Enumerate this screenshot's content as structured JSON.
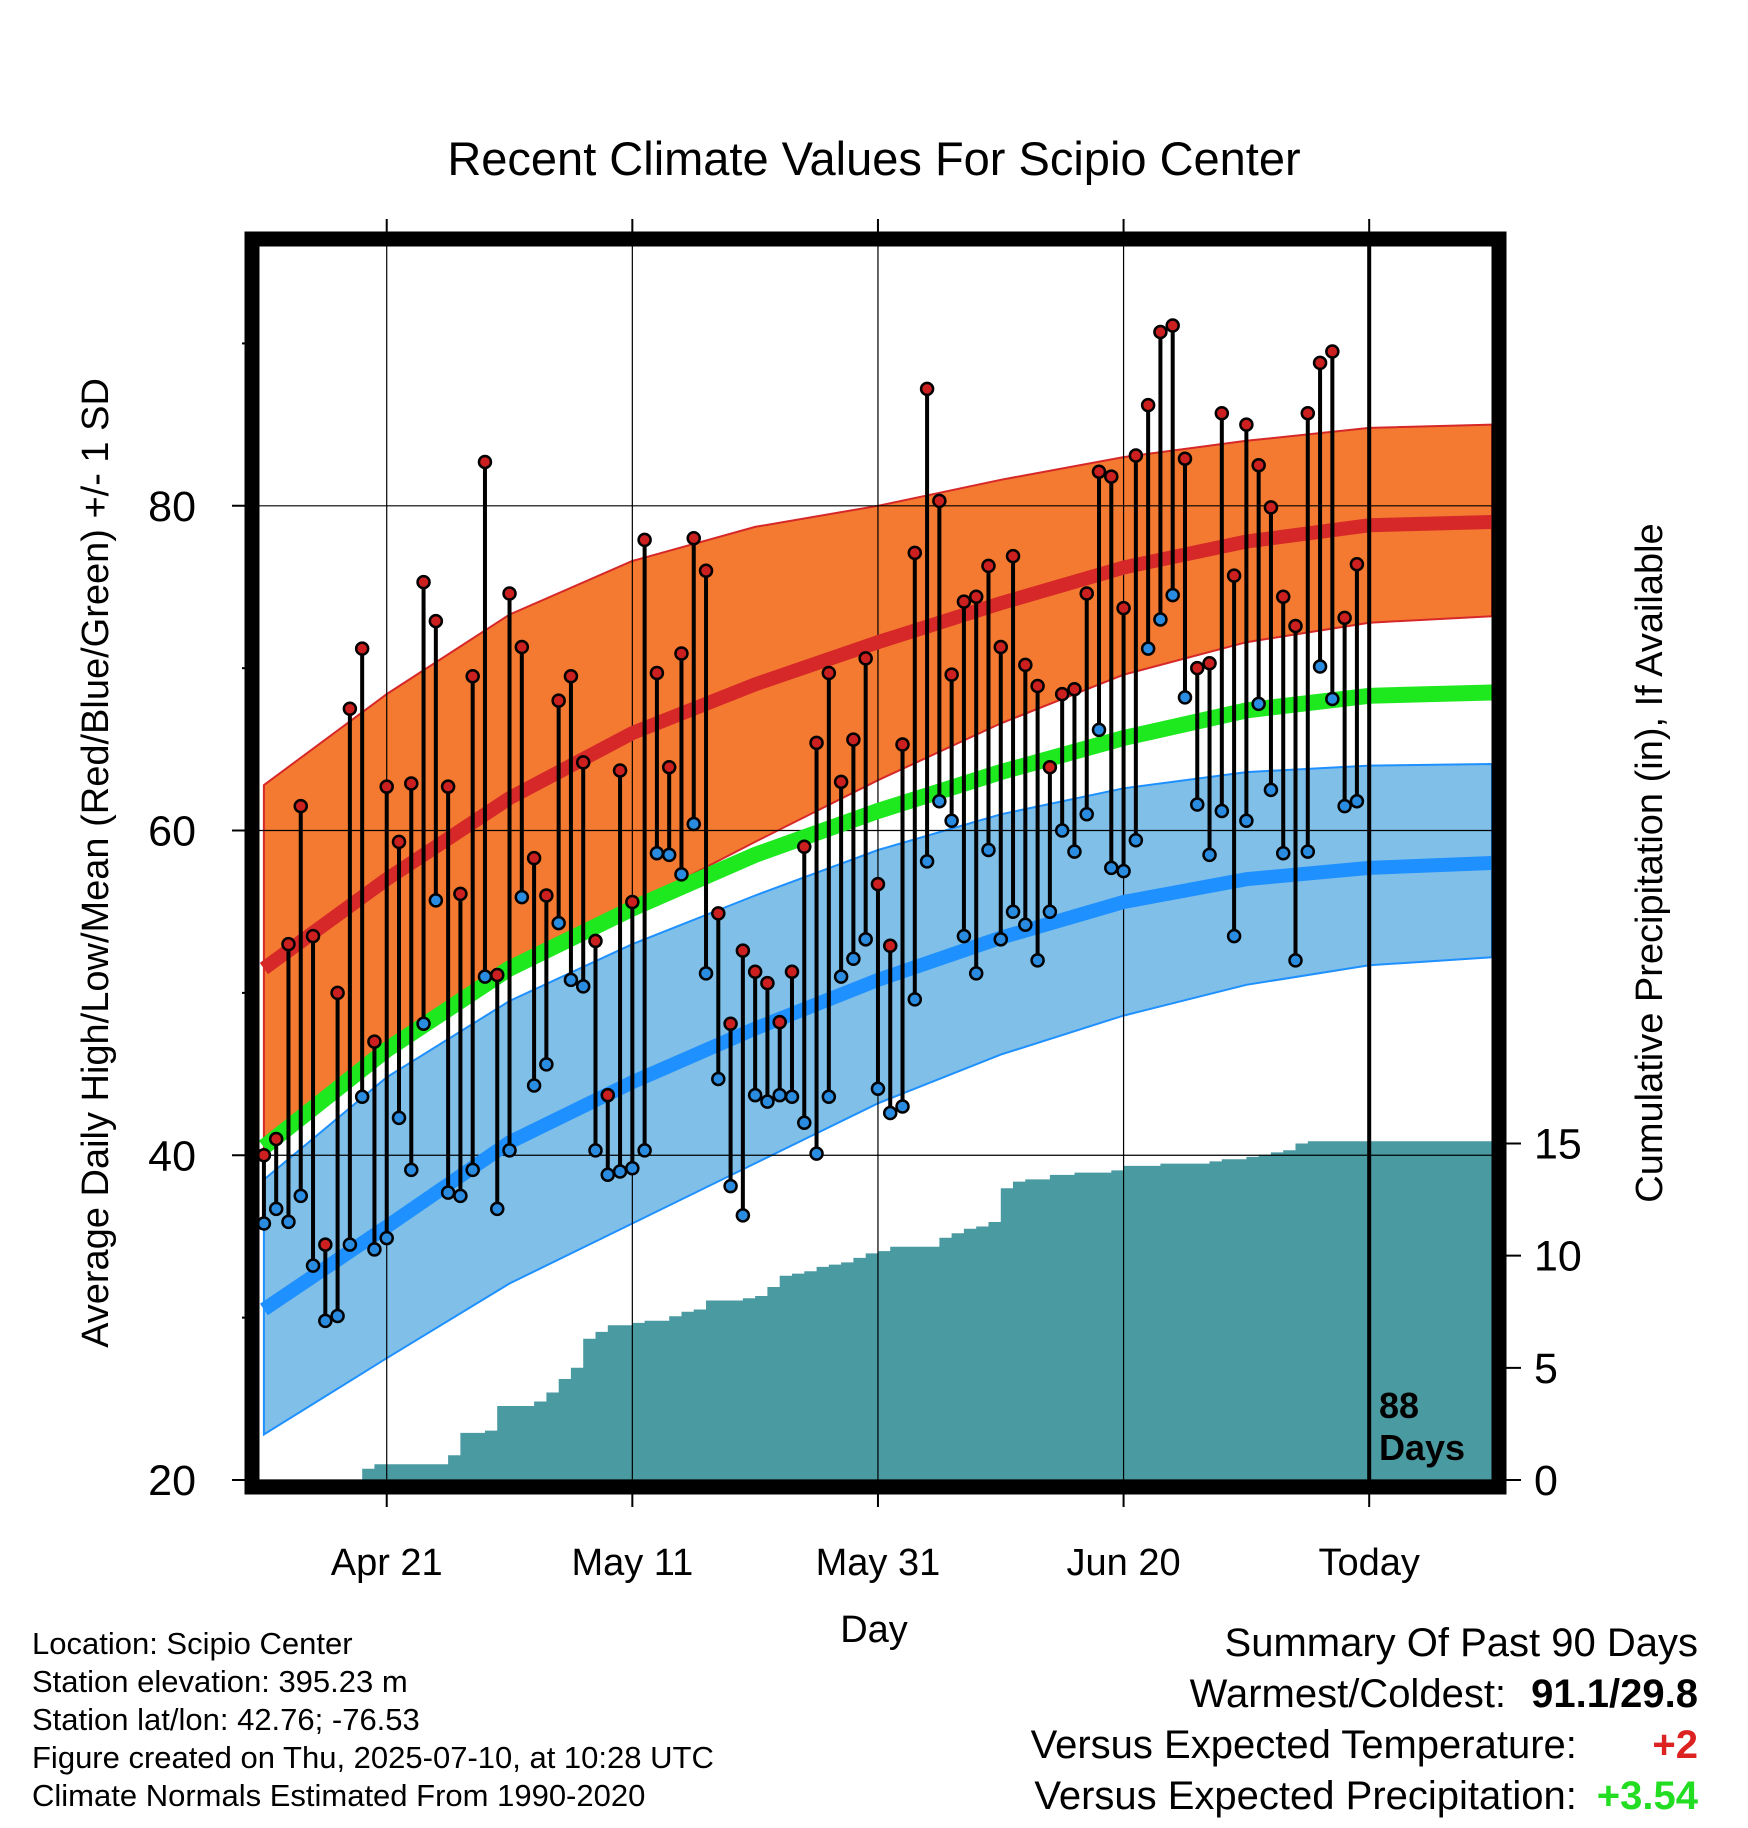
{
  "title": "Recent Climate Values For Scipio Center",
  "chart_data": {
    "type": "line",
    "title": "Recent Climate Values For Scipio Center",
    "xlabel": "Day",
    "ylabel": "Average Daily High/Low/Mean (Red/Blue/Green) +/- 1 SD",
    "y2label": "Cumulative Precipitation (in), If Available",
    "x_ticks": [
      {
        "day": 10,
        "label": "Apr 21"
      },
      {
        "day": 30,
        "label": "May 11"
      },
      {
        "day": 50,
        "label": "May 31"
      },
      {
        "day": 70,
        "label": "Jun 20"
      },
      {
        "day": 90,
        "label": "Today"
      }
    ],
    "xlim": [
      -0.4,
      100
    ],
    "ylim": [
      20,
      96
    ],
    "y_ticks": [
      20,
      40,
      60,
      80
    ],
    "y_minor_ticks": [
      30,
      50,
      70,
      90
    ],
    "y2lim": [
      0,
      55
    ],
    "y2_ticks": [
      0,
      5,
      10,
      15
    ],
    "today_marker": {
      "day": 90,
      "label_line1": "88",
      "label_line2": "Days"
    },
    "normals": {
      "days": [
        0,
        10,
        20,
        30,
        40,
        50,
        60,
        70,
        80,
        90,
        100
      ],
      "high_mean": [
        51.5,
        57.0,
        62.0,
        66.0,
        69.0,
        71.6,
        74.0,
        76.2,
        77.8,
        78.8,
        79.0
      ],
      "high_upper": [
        62.8,
        68.4,
        73.3,
        76.6,
        78.7,
        80.0,
        81.6,
        83.0,
        84.0,
        84.8,
        85.0
      ],
      "high_lower": [
        40.5,
        46.1,
        51.2,
        55.4,
        59.3,
        63.1,
        66.6,
        69.6,
        71.6,
        72.8,
        73.2
      ],
      "mean": [
        40.5,
        46.5,
        51.5,
        55.2,
        58.5,
        61.2,
        63.6,
        65.7,
        67.4,
        68.3,
        68.5
      ],
      "low_mean": [
        30.5,
        35.6,
        40.8,
        44.5,
        47.8,
        50.8,
        53.4,
        55.6,
        57.0,
        57.7,
        58.0
      ],
      "low_upper": [
        38.5,
        44.8,
        49.5,
        53.0,
        56.0,
        58.8,
        61.0,
        62.6,
        63.6,
        64.0,
        64.1
      ],
      "low_lower": [
        22.8,
        27.5,
        32.1,
        35.8,
        39.5,
        43.2,
        46.2,
        48.6,
        50.5,
        51.7,
        52.2
      ]
    },
    "series": [
      {
        "name": "High",
        "color": "#e02020",
        "values": [
          40.0,
          41.0,
          53.0,
          61.5,
          53.5,
          34.5,
          50.0,
          67.5,
          71.2,
          47.0,
          62.7,
          59.3,
          62.9,
          75.3,
          72.9,
          62.7,
          56.1,
          69.5,
          82.7,
          51.1,
          74.6,
          71.3,
          58.3,
          56.0,
          68.0,
          69.5,
          64.2,
          53.2,
          43.7,
          63.7,
          55.6,
          77.9,
          69.7,
          63.9,
          70.9,
          78.0,
          76.0,
          54.9,
          48.1,
          52.6,
          51.3,
          50.6,
          48.2,
          51.3,
          59.0,
          65.4,
          69.7,
          63.0,
          65.6,
          70.6,
          56.7,
          52.9,
          65.3,
          77.1,
          87.2,
          80.3,
          69.6,
          74.1,
          74.4,
          76.3,
          71.3,
          76.9,
          70.2,
          68.9,
          63.9,
          68.4,
          68.7,
          74.6,
          82.1,
          81.8,
          73.7,
          83.1,
          86.2,
          90.7,
          91.1,
          82.9,
          70.0,
          70.3,
          85.7,
          75.7,
          85.0,
          82.5,
          79.9,
          74.4,
          72.6,
          85.7,
          88.8,
          89.5,
          73.1,
          76.4
        ]
      },
      {
        "name": "Low",
        "color": "#1e90ff",
        "values": [
          35.8,
          36.7,
          35.9,
          37.5,
          33.2,
          29.8,
          30.1,
          34.5,
          43.6,
          34.2,
          34.9,
          42.3,
          39.1,
          48.1,
          55.7,
          37.7,
          37.5,
          39.1,
          51.0,
          36.7,
          40.3,
          55.9,
          44.3,
          45.6,
          54.3,
          50.8,
          50.4,
          40.3,
          38.8,
          39.0,
          39.2,
          40.3,
          58.6,
          58.5,
          57.3,
          60.4,
          51.2,
          44.7,
          38.1,
          36.3,
          43.7,
          43.3,
          43.7,
          43.6,
          42.0,
          40.1,
          43.6,
          51.0,
          52.1,
          53.3,
          44.1,
          42.6,
          43.0,
          49.6,
          58.1,
          61.8,
          60.6,
          53.5,
          51.2,
          58.8,
          53.3,
          55.0,
          54.2,
          52.0,
          55.0,
          60.0,
          58.7,
          61.0,
          66.2,
          57.7,
          57.5,
          59.4,
          71.2,
          73.0,
          74.5,
          68.2,
          61.6,
          58.5,
          61.2,
          53.5,
          60.6,
          67.8,
          62.5,
          58.6,
          52.0,
          58.7,
          70.1,
          68.1,
          61.5,
          61.8
        ]
      },
      {
        "name": "Cumulative Precipitation",
        "color": "#4a9aa2",
        "days": [
          0,
          7,
          8,
          9,
          14,
          15,
          16,
          18,
          19,
          21,
          22,
          23,
          24,
          25,
          26,
          27,
          28,
          29,
          30,
          31,
          32,
          33,
          34,
          35,
          36,
          37,
          38,
          39,
          40,
          41,
          42,
          43,
          44,
          45,
          46,
          47,
          48,
          49,
          50,
          51,
          52,
          53,
          54,
          55,
          56,
          57,
          58,
          59,
          60,
          61,
          62,
          63,
          64,
          65,
          66,
          67,
          68,
          69,
          70,
          71,
          72,
          73,
          74,
          75,
          76,
          77,
          78,
          79,
          80,
          81,
          82,
          83,
          84,
          85,
          86,
          87,
          88,
          89,
          90,
          100
        ],
        "values": [
          0,
          0,
          0.5,
          0.7,
          0.7,
          1.1,
          2.1,
          2.2,
          3.3,
          3.3,
          3.5,
          3.9,
          4.5,
          5.0,
          6.3,
          6.6,
          6.9,
          6.9,
          7.0,
          7.1,
          7.1,
          7.3,
          7.5,
          7.6,
          8.0,
          8.0,
          8.0,
          8.1,
          8.2,
          8.6,
          9.1,
          9.2,
          9.3,
          9.5,
          9.6,
          9.7,
          9.9,
          10.1,
          10.2,
          10.4,
          10.4,
          10.4,
          10.4,
          10.8,
          11.0,
          11.2,
          11.3,
          11.5,
          13.0,
          13.3,
          13.4,
          13.4,
          13.6,
          13.6,
          13.7,
          13.7,
          13.7,
          13.8,
          14.0,
          14.0,
          14.0,
          14.1,
          14.1,
          14.1,
          14.1,
          14.2,
          14.3,
          14.3,
          14.4,
          14.5,
          14.6,
          14.7,
          15.0,
          15.1,
          15.1,
          15.1,
          15.1,
          15.1,
          15.1,
          15.1
        ]
      }
    ]
  },
  "info": {
    "location": "Location: Scipio Center",
    "elevation": "Station elevation: 395.23 m",
    "latlon": "Station lat/lon: 42.76; -76.53",
    "created": "Figure created on Thu, 2025-07-10, at 10:28 UTC",
    "normals": "Climate Normals Estimated From 1990-2020"
  },
  "summary": {
    "heading": "Summary Of Past 90 Days",
    "warm_cold_label": "Warmest/Coldest:",
    "warm_cold_value": "91.1/29.8",
    "temp_label": "Versus Expected Temperature:",
    "temp_value": "+2",
    "temp_color": "#dd2222",
    "precip_label": "Versus Expected Precipitation:",
    "precip_value": "+3.54",
    "precip_color": "#22dd22"
  },
  "colors": {
    "high_band": "#f37a30",
    "high_line": "#d62828",
    "mean_line": "#1ee81e",
    "low_band": "#7fbfe8",
    "low_line": "#1e90ff",
    "precip": "#4a9aa2",
    "high_marker": "#cc2020",
    "low_marker": "#2a8ce0"
  }
}
